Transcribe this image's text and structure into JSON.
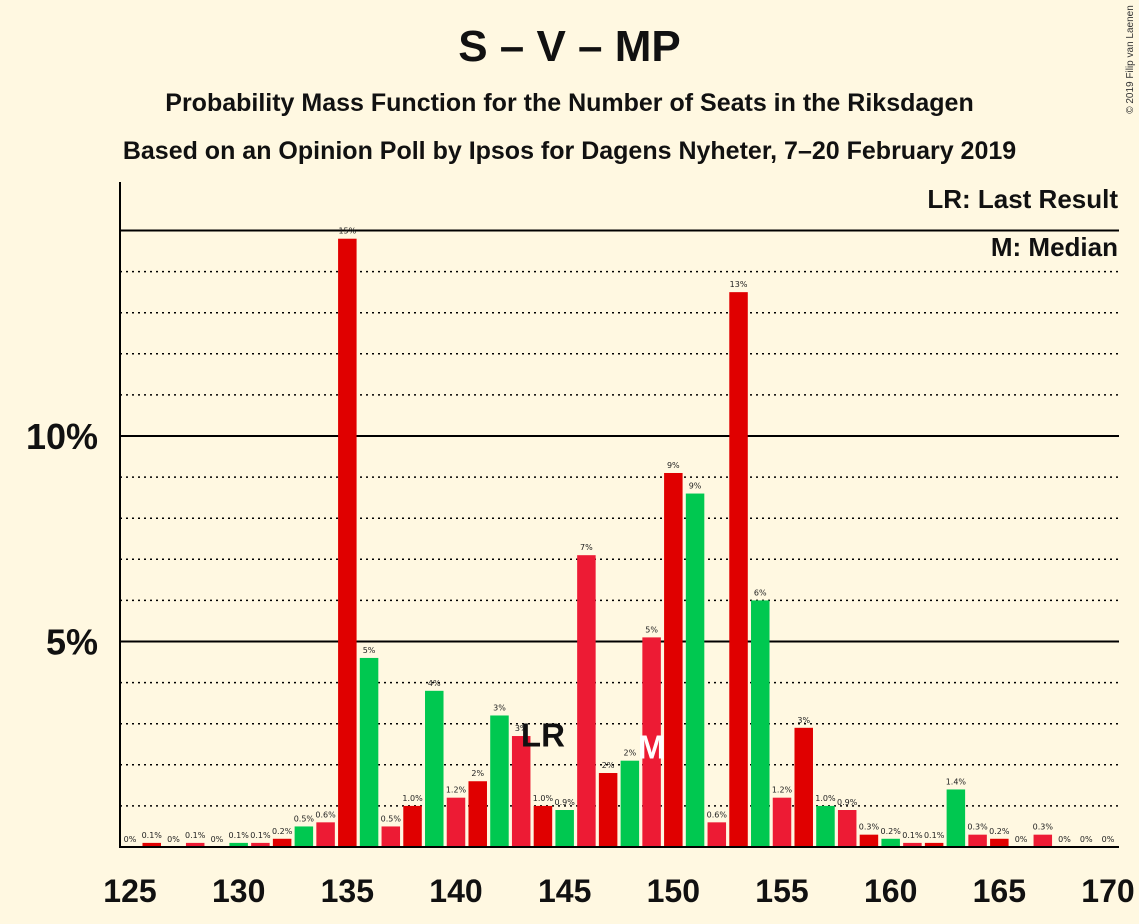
{
  "title": "S – V – MP",
  "subtitle1": "Probability Mass Function for the Number of Seats in the Riksdagen",
  "subtitle2": "Based on an Opinion Poll by Ipsos for Dagens Nyheter, 7–20 February 2019",
  "copyright": "© 2019 Filip van Laenen",
  "legend": {
    "last_result": "LR: Last Result",
    "median": "M: Median"
  },
  "colors": {
    "background": "#FFF8E1",
    "red_bright": "#ED1B34",
    "red_dark": "#E00000",
    "green": "#00C850"
  },
  "chart_data": {
    "type": "bar",
    "xlim": [
      125,
      170
    ],
    "ylim": [
      0,
      16
    ],
    "x_ticks": [
      125,
      130,
      135,
      140,
      145,
      150,
      155,
      160,
      165,
      170
    ],
    "y_ticks": [
      {
        "value": 5,
        "label": "5%"
      },
      {
        "value": 10,
        "label": "10%"
      }
    ],
    "grid": "dotted every 1%, solid at 5% and 10%",
    "last_result": {
      "seat": 144,
      "label": "LR"
    },
    "median": {
      "seat": 149,
      "label": "M"
    },
    "bars": [
      {
        "seat": 125,
        "value": 0.0,
        "label": "0%",
        "color": "red_bright"
      },
      {
        "seat": 126,
        "value": 0.1,
        "label": "0.1%",
        "color": "red_dark"
      },
      {
        "seat": 127,
        "value": 0.0,
        "label": "0%",
        "color": "green"
      },
      {
        "seat": 128,
        "value": 0.1,
        "label": "0.1%",
        "color": "red_bright"
      },
      {
        "seat": 129,
        "value": 0.0,
        "label": "0%",
        "color": "red_dark"
      },
      {
        "seat": 130,
        "value": 0.1,
        "label": "0.1%",
        "color": "green"
      },
      {
        "seat": 131,
        "value": 0.1,
        "label": "0.1%",
        "color": "red_bright"
      },
      {
        "seat": 132,
        "value": 0.2,
        "label": "0.2%",
        "color": "red_dark"
      },
      {
        "seat": 133,
        "value": 0.5,
        "label": "0.5%",
        "color": "green"
      },
      {
        "seat": 134,
        "value": 0.6,
        "label": "0.6%",
        "color": "red_bright"
      },
      {
        "seat": 135,
        "value": 14.8,
        "label": "15%",
        "color": "red_dark"
      },
      {
        "seat": 136,
        "value": 4.6,
        "label": "5%",
        "color": "green"
      },
      {
        "seat": 137,
        "value": 0.5,
        "label": "0.5%",
        "color": "red_bright"
      },
      {
        "seat": 138,
        "value": 1.0,
        "label": "1.0%",
        "color": "red_dark"
      },
      {
        "seat": 139,
        "value": 3.8,
        "label": "4%",
        "color": "green"
      },
      {
        "seat": 140,
        "value": 1.2,
        "label": "1.2%",
        "color": "red_bright"
      },
      {
        "seat": 141,
        "value": 1.6,
        "label": "2%",
        "color": "red_dark"
      },
      {
        "seat": 142,
        "value": 3.2,
        "label": "3%",
        "color": "green"
      },
      {
        "seat": 143,
        "value": 2.7,
        "label": "3%",
        "color": "red_bright"
      },
      {
        "seat": 144,
        "value": 1.0,
        "label": "1.0%",
        "color": "red_dark"
      },
      {
        "seat": 145,
        "value": 0.9,
        "label": "0.9%",
        "color": "green"
      },
      {
        "seat": 146,
        "value": 7.1,
        "label": "7%",
        "color": "red_bright"
      },
      {
        "seat": 147,
        "value": 1.8,
        "label": "2%",
        "color": "red_dark"
      },
      {
        "seat": 148,
        "value": 2.1,
        "label": "2%",
        "color": "green"
      },
      {
        "seat": 149,
        "value": 5.1,
        "label": "5%",
        "color": "red_bright"
      },
      {
        "seat": 150,
        "value": 9.1,
        "label": "9%",
        "color": "red_dark"
      },
      {
        "seat": 151,
        "value": 8.6,
        "label": "9%",
        "color": "green"
      },
      {
        "seat": 152,
        "value": 0.6,
        "label": "0.6%",
        "color": "red_bright"
      },
      {
        "seat": 153,
        "value": 13.5,
        "label": "13%",
        "color": "red_dark"
      },
      {
        "seat": 154,
        "value": 6.0,
        "label": "6%",
        "color": "green"
      },
      {
        "seat": 155,
        "value": 1.2,
        "label": "1.2%",
        "color": "red_bright"
      },
      {
        "seat": 156,
        "value": 2.9,
        "label": "3%",
        "color": "red_dark"
      },
      {
        "seat": 157,
        "value": 1.0,
        "label": "1.0%",
        "color": "green"
      },
      {
        "seat": 158,
        "value": 0.9,
        "label": "0.9%",
        "color": "red_bright"
      },
      {
        "seat": 159,
        "value": 0.3,
        "label": "0.3%",
        "color": "red_dark"
      },
      {
        "seat": 160,
        "value": 0.2,
        "label": "0.2%",
        "color": "green"
      },
      {
        "seat": 161,
        "value": 0.1,
        "label": "0.1%",
        "color": "red_bright"
      },
      {
        "seat": 162,
        "value": 0.1,
        "label": "0.1%",
        "color": "red_dark"
      },
      {
        "seat": 163,
        "value": 1.4,
        "label": "1.4%",
        "color": "green"
      },
      {
        "seat": 164,
        "value": 0.3,
        "label": "0.3%",
        "color": "red_bright"
      },
      {
        "seat": 165,
        "value": 0.2,
        "label": "0.2%",
        "color": "red_dark"
      },
      {
        "seat": 166,
        "value": 0.0,
        "label": "0%",
        "color": "green"
      },
      {
        "seat": 167,
        "value": 0.3,
        "label": "0.3%",
        "color": "red_bright"
      },
      {
        "seat": 168,
        "value": 0.0,
        "label": "0%",
        "color": "red_dark"
      },
      {
        "seat": 169,
        "value": 0.0,
        "label": "0%",
        "color": "green"
      },
      {
        "seat": 170,
        "value": 0.0,
        "label": "0%",
        "color": "red_bright"
      }
    ]
  }
}
